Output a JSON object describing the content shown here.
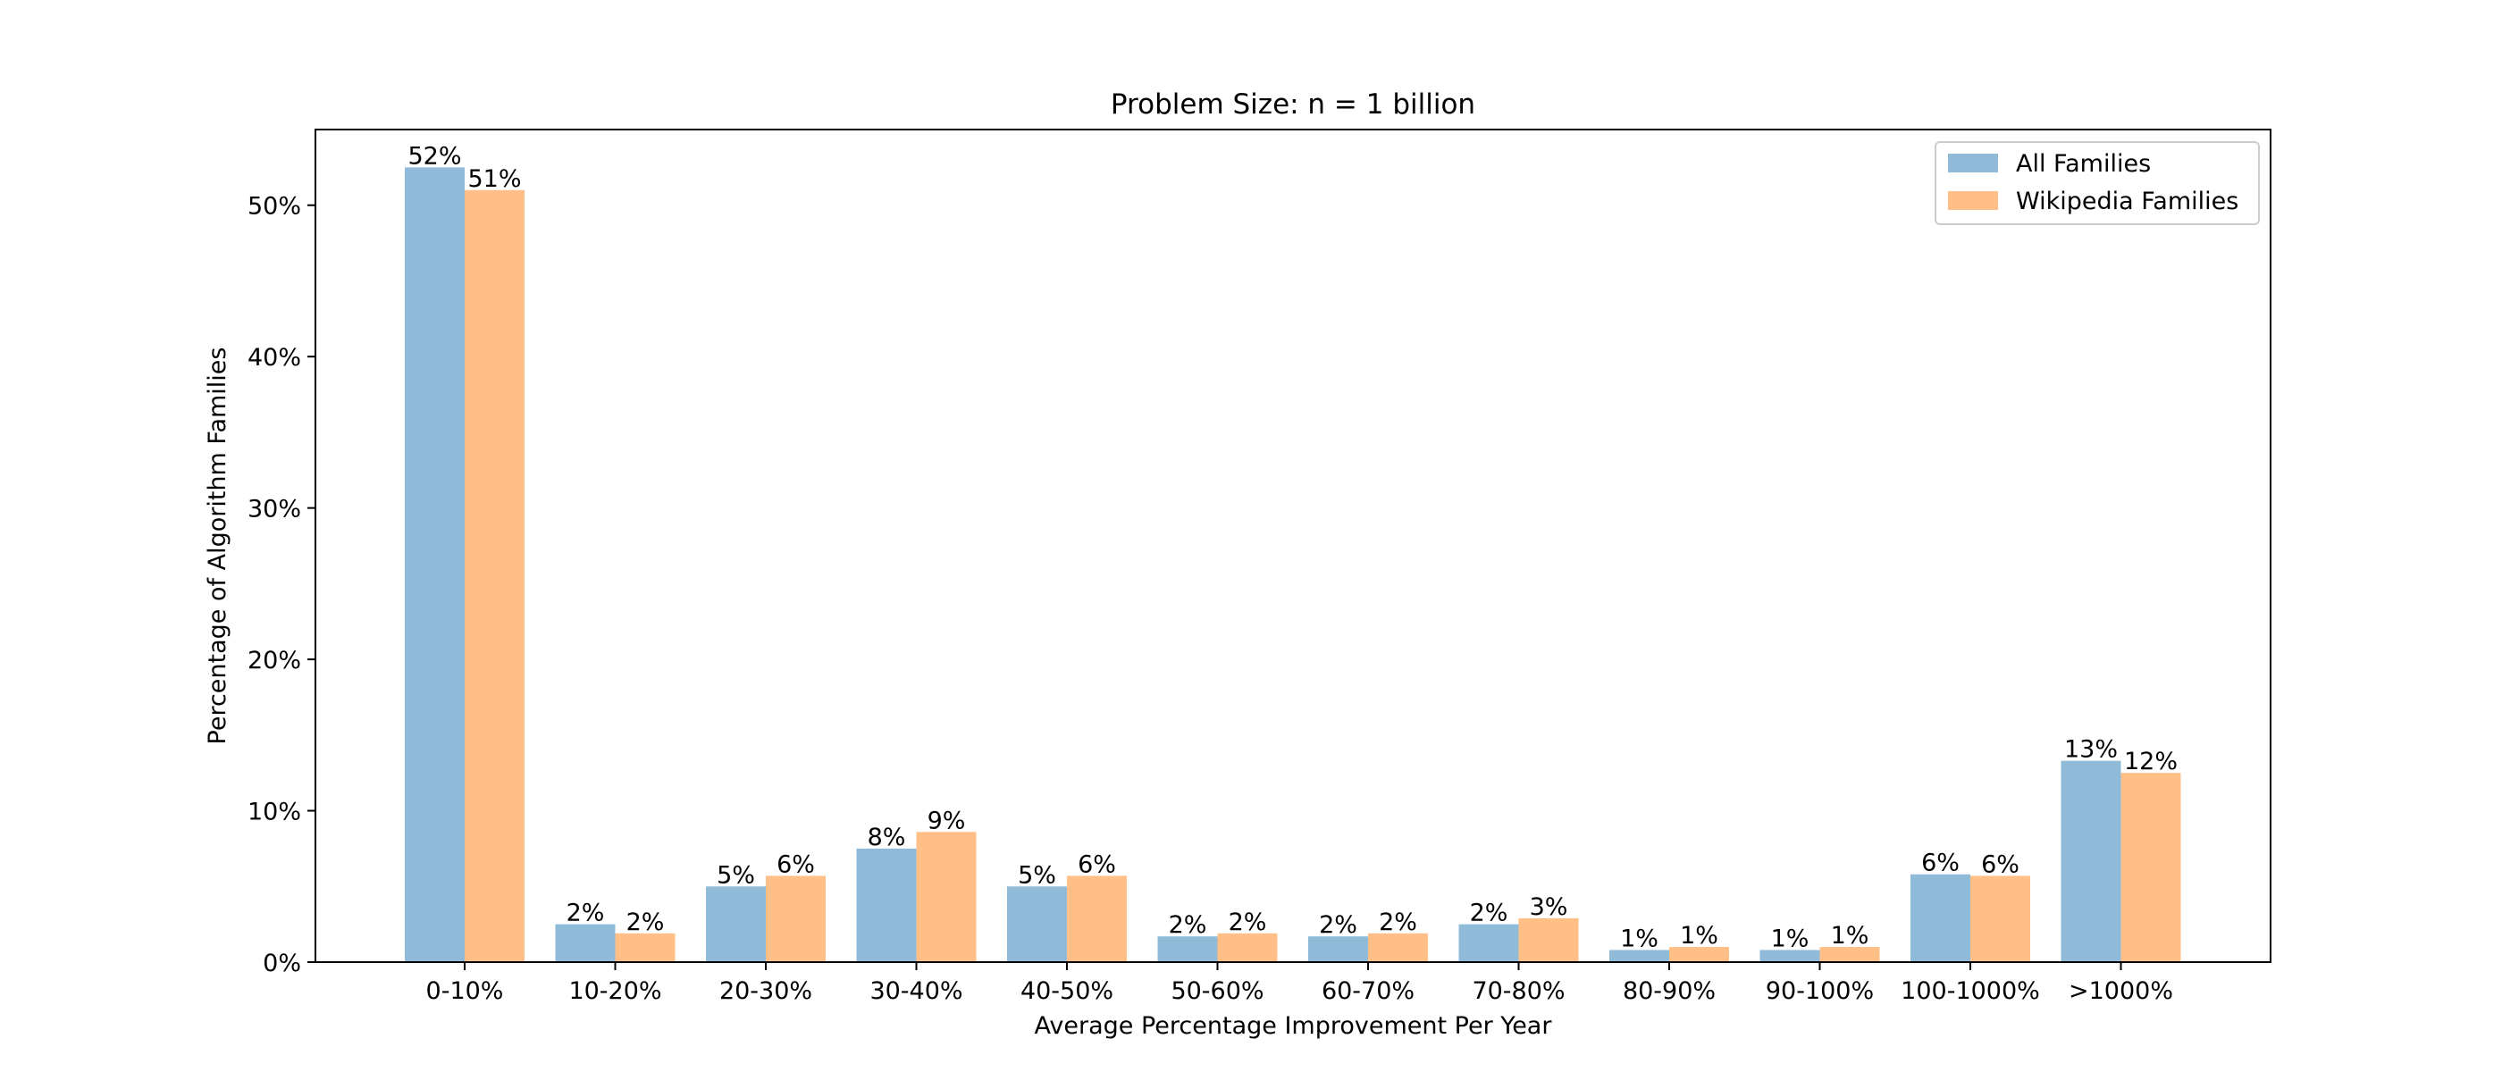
{
  "chart_data": {
    "type": "bar",
    "title": "Problem Size: n = 1 billion",
    "xlabel": "Average Percentage Improvement Per Year",
    "ylabel": "Percentage of Algorithm Families",
    "categories": [
      "0-10%",
      "10-20%",
      "20-30%",
      "30-40%",
      "40-50%",
      "50-60%",
      "60-70%",
      "70-80%",
      "80-90%",
      "90-100%",
      "100-1000%",
      ">1000%"
    ],
    "series": [
      {
        "name": "All Families",
        "color": "#8fbbd9",
        "values": [
          52.5,
          2.5,
          5.0,
          7.5,
          5.0,
          1.7,
          1.7,
          2.5,
          0.8,
          0.8,
          5.8,
          13.3
        ],
        "labels": [
          "52%",
          "2%",
          "5%",
          "8%",
          "5%",
          "2%",
          "2%",
          "2%",
          "1%",
          "1%",
          "6%",
          "13%"
        ]
      },
      {
        "name": "Wikipedia Families",
        "color": "#ffbf86",
        "values": [
          51.0,
          1.9,
          5.7,
          8.6,
          5.7,
          1.9,
          1.9,
          2.9,
          1.0,
          1.0,
          5.7,
          12.5
        ],
        "labels": [
          "51%",
          "2%",
          "6%",
          "9%",
          "6%",
          "2%",
          "2%",
          "3%",
          "1%",
          "1%",
          "6%",
          "12%"
        ]
      }
    ],
    "ylim": [
      0,
      55
    ],
    "yticks": [
      0,
      10,
      20,
      30,
      40,
      50
    ],
    "ytick_labels": [
      "0%",
      "10%",
      "20%",
      "30%",
      "40%",
      "50%"
    ],
    "grid": false,
    "legend_position": "top-right"
  }
}
